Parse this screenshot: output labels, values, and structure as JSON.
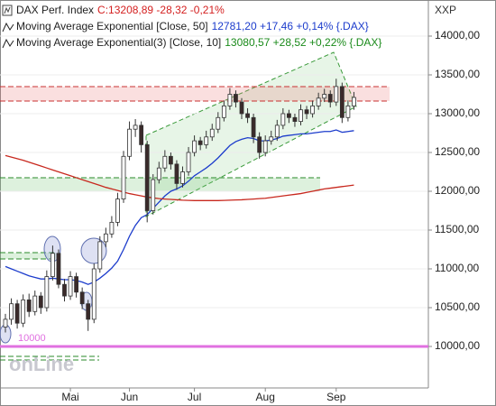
{
  "chart_data": {
    "type": "candlestick",
    "title": "DAX Perf. Index",
    "quote": "C:13208,89 -28,32 -0,21%",
    "quote_color": "#d42020",
    "symbol": "XXP",
    "watermark": "onLine",
    "up_color": "#ffffff",
    "down_color": "#3a2a2a",
    "categories": [
      null,
      null,
      null,
      null,
      null,
      null,
      null,
      null,
      null,
      null,
      null,
      "Mai",
      null,
      null,
      null,
      null,
      null,
      null,
      null,
      null,
      null,
      "Jun",
      null,
      null,
      null,
      null,
      null,
      null,
      null,
      null,
      null,
      null,
      "Jul",
      null,
      null,
      null,
      null,
      null,
      null,
      null,
      null,
      null,
      null,
      null,
      "Aug",
      null,
      null,
      null,
      null,
      null,
      null,
      null,
      null,
      null,
      null,
      null,
      "Sep",
      null,
      null,
      null
    ],
    "ohlc": [
      [
        10250,
        10420,
        10180,
        10350
      ],
      [
        10350,
        10620,
        10280,
        10550
      ],
      [
        10550,
        10600,
        10230,
        10300
      ],
      [
        10300,
        10670,
        10250,
        10600
      ],
      [
        10600,
        10680,
        10380,
        10450
      ],
      [
        10450,
        10720,
        10400,
        10650
      ],
      [
        10650,
        10700,
        10420,
        10500
      ],
      [
        10500,
        10980,
        10450,
        10900
      ],
      [
        10900,
        11300,
        10850,
        11200
      ],
      [
        11200,
        11250,
        10750,
        10800
      ],
      [
        10800,
        10870,
        10580,
        10650
      ],
      [
        10650,
        10970,
        10600,
        10900
      ],
      [
        10900,
        10950,
        10630,
        10700
      ],
      [
        10700,
        10760,
        10480,
        10550
      ],
      [
        10550,
        10600,
        10200,
        10350
      ],
      [
        10350,
        11070,
        10300,
        11000
      ],
      [
        11000,
        11420,
        10950,
        11350
      ],
      [
        11350,
        11530,
        11280,
        11450
      ],
      [
        11450,
        11680,
        11400,
        11600
      ],
      [
        11600,
        11980,
        11550,
        11900
      ],
      [
        11900,
        12520,
        11850,
        12450
      ],
      [
        12450,
        12900,
        12400,
        12800
      ],
      [
        12800,
        12930,
        12700,
        12850
      ],
      [
        12850,
        12900,
        12500,
        12600
      ],
      [
        12600,
        12650,
        11600,
        11750
      ],
      [
        11750,
        12220,
        11700,
        12150
      ],
      [
        12150,
        12380,
        12100,
        12300
      ],
      [
        12300,
        12530,
        12250,
        12450
      ],
      [
        12450,
        12500,
        12280,
        12350
      ],
      [
        12350,
        12400,
        12020,
        12100
      ],
      [
        12100,
        12320,
        12050,
        12250
      ],
      [
        12250,
        12570,
        12200,
        12500
      ],
      [
        12500,
        12720,
        12450,
        12650
      ],
      [
        12650,
        12700,
        12530,
        12600
      ],
      [
        12600,
        12780,
        12550,
        12700
      ],
      [
        12700,
        12870,
        12650,
        12800
      ],
      [
        12800,
        13020,
        12750,
        12950
      ],
      [
        12950,
        13170,
        12900,
        13100
      ],
      [
        13100,
        13330,
        13050,
        13250
      ],
      [
        13250,
        13300,
        13080,
        13150
      ],
      [
        13150,
        13200,
        12930,
        13000
      ],
      [
        13000,
        13070,
        12880,
        12950
      ],
      [
        12950,
        13000,
        12620,
        12700
      ],
      [
        12700,
        12760,
        12420,
        12500
      ],
      [
        12500,
        12720,
        12450,
        12650
      ],
      [
        12650,
        12780,
        12600,
        12700
      ],
      [
        12700,
        12920,
        12650,
        12850
      ],
      [
        12850,
        13070,
        12800,
        13000
      ],
      [
        13000,
        13050,
        12880,
        12950
      ],
      [
        12950,
        13000,
        12830,
        12900
      ],
      [
        12900,
        13120,
        12850,
        13050
      ],
      [
        13050,
        13100,
        12930,
        13000
      ],
      [
        13000,
        13170,
        12950,
        13100
      ],
      [
        13100,
        13270,
        13050,
        13200
      ],
      [
        13200,
        13320,
        13150,
        13250
      ],
      [
        13250,
        13300,
        13080,
        13150
      ],
      [
        13150,
        13450,
        13100,
        13350
      ],
      [
        13350,
        13400,
        12880,
        12950
      ],
      [
        12950,
        13170,
        12900,
        13100
      ],
      [
        13100,
        13280,
        13050,
        13208.89
      ]
    ],
    "series": [
      {
        "name": "Moving Average Exponential [Close, 50]",
        "stats": "12781,20 +17,46 +0,14% {.DAX}",
        "color": "#1c3ccc",
        "values": [
          11030,
          11000,
          10970,
          10940,
          10910,
          10890,
          10870,
          10870,
          10880,
          10870,
          10860,
          10860,
          10850,
          10830,
          10800,
          10830,
          10880,
          10940,
          11010,
          11100,
          11250,
          11420,
          11560,
          11660,
          11700,
          11780,
          11860,
          11940,
          12000,
          12030,
          12070,
          12130,
          12200,
          12250,
          12300,
          12360,
          12430,
          12510,
          12590,
          12640,
          12670,
          12690,
          12680,
          12650,
          12650,
          12660,
          12680,
          12710,
          12720,
          12730,
          12740,
          12740,
          12750,
          12760,
          12770,
          12770,
          12790,
          12760,
          12770,
          12781.2
        ]
      },
      {
        "name": "Moving Average Exponential(3) [Close, 10]",
        "stats": "13080,57 +28,52 +0,22% {.DAX}",
        "color": "#1a8a1a"
      },
      {
        "color": "#c8281e",
        "values": [
          12460,
          12440,
          12420,
          12400,
          12375,
          12350,
          12325,
          12300,
          12275,
          12250,
          12225,
          12200,
          12175,
          12150,
          12125,
          12100,
          12075,
          12050,
          12030,
          12010,
          11990,
          11970,
          11955,
          11940,
          11925,
          11915,
          11905,
          11900,
          11895,
          11890,
          11885,
          11882,
          11880,
          11880,
          11880,
          11880,
          11880,
          11882,
          11885,
          11888,
          11890,
          11895,
          11900,
          11905,
          11910,
          11920,
          11930,
          11940,
          11950,
          11960,
          11970,
          11985,
          12000,
          12015,
          12030,
          12040,
          12050,
          12060,
          12070,
          12080
        ]
      }
    ],
    "hline": {
      "value": 10000,
      "color": "#e070e0"
    },
    "ylim": [
      9465,
      14465
    ],
    "yticks": [
      {
        "value": 10000,
        "label": "10000,00"
      },
      {
        "value": 10500,
        "label": "10500,00"
      },
      {
        "value": 11000,
        "label": "11000,00"
      },
      {
        "value": 11500,
        "label": "11500,00"
      },
      {
        "value": 12000,
        "label": "12000,00"
      },
      {
        "value": 12500,
        "label": "12500,00"
      },
      {
        "value": 13000,
        "label": "13000,00"
      },
      {
        "value": 13500,
        "label": "13500,00"
      },
      {
        "value": 14000,
        "label": "14000,00"
      }
    ],
    "grid": true
  }
}
